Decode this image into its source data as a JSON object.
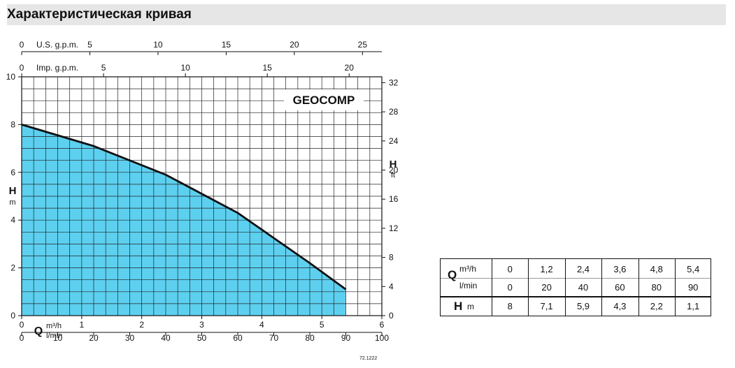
{
  "title": "Характеристическая кривая",
  "chart_data": {
    "type": "area",
    "label": "GEOCOMP",
    "series": [
      {
        "name": "",
        "x": [
          0,
          1.2,
          2.4,
          3.6,
          4.8,
          5.4
        ],
        "y": [
          8,
          7.1,
          5.9,
          4.3,
          2.2,
          1.1
        ]
      }
    ],
    "axes": {
      "x_m3h": {
        "ticks": [
          "0",
          "1",
          "2",
          "3",
          "4",
          "5",
          "6"
        ],
        "range": [
          0,
          6
        ],
        "unit": "m³/h"
      },
      "x_lmin": {
        "ticks": [
          "0",
          "10",
          "20",
          "30",
          "40",
          "50",
          "60",
          "70",
          "80",
          "90",
          "100"
        ],
        "range": [
          0,
          100
        ],
        "unit": "l/min"
      },
      "x_usgpm": {
        "label": "U.S. g.p.m.",
        "ticks": [
          "0",
          "5",
          "10",
          "15",
          "20",
          "25"
        ]
      },
      "x_impgpm": {
        "label": "Imp. g.p.m.",
        "ticks": [
          "0",
          "5",
          "10",
          "15",
          "20"
        ]
      },
      "y_m": {
        "ticks": [
          "0",
          "2",
          "4",
          "6",
          "8",
          "10"
        ],
        "range": [
          0,
          10
        ],
        "label": "H",
        "unit": "m"
      },
      "y_ft": {
        "ticks": [
          "0",
          "4",
          "8",
          "12",
          "16",
          "20",
          "24",
          "28",
          "32"
        ],
        "label": "H",
        "unit": "ft"
      }
    },
    "q_symbol": "Q",
    "grid": true,
    "fill_color": "#5dd0f0",
    "curve_color": "#111111",
    "code": "72.1222"
  },
  "table": {
    "q_symbol": "Q",
    "q_unit1": "m³/h",
    "q_unit2": "l/min",
    "h_symbol": "H",
    "h_unit": "m",
    "q_m3h": [
      "0",
      "1,2",
      "2,4",
      "3,6",
      "4,8",
      "5,4"
    ],
    "q_lmin": [
      "0",
      "20",
      "40",
      "60",
      "80",
      "90"
    ],
    "h_m": [
      "8",
      "7,1",
      "5,9",
      "4,3",
      "2,2",
      "1,1"
    ]
  }
}
